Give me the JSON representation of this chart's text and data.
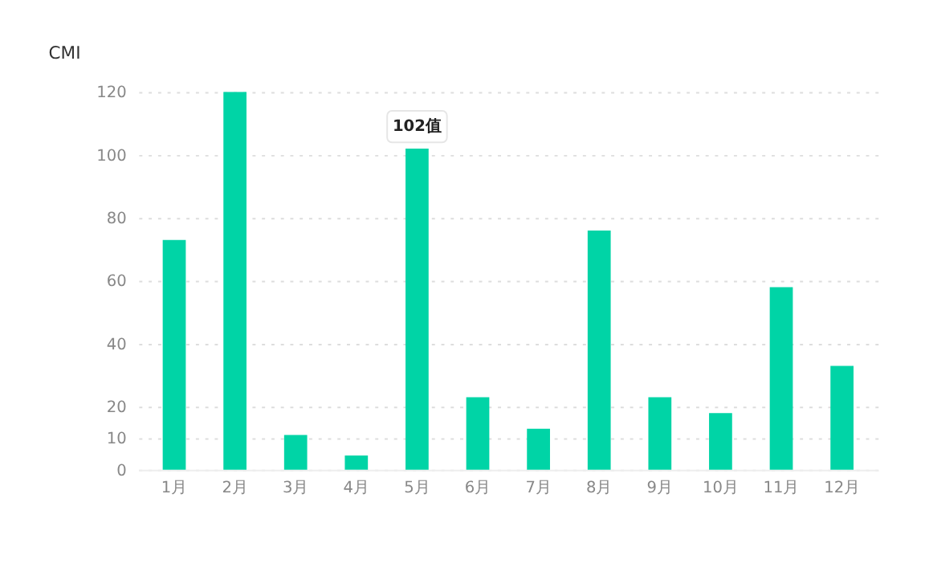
{
  "chart_data": {
    "type": "bar",
    "title": "CMI",
    "categories": [
      "1月",
      "2月",
      "3月",
      "4月",
      "5月",
      "6月",
      "7月",
      "8月",
      "9月",
      "10月",
      "11月",
      "12月"
    ],
    "values": [
      73,
      120,
      11,
      4.5,
      102,
      23,
      13,
      76,
      23,
      18,
      58,
      33
    ],
    "color": "#00d4a6",
    "ylim": [
      0,
      120
    ],
    "yticks": [
      0,
      10,
      20,
      40,
      60,
      80,
      100,
      120
    ],
    "grid": "y",
    "annotations": [
      {
        "text": "102值",
        "x": "5月",
        "y": 102
      }
    ]
  }
}
